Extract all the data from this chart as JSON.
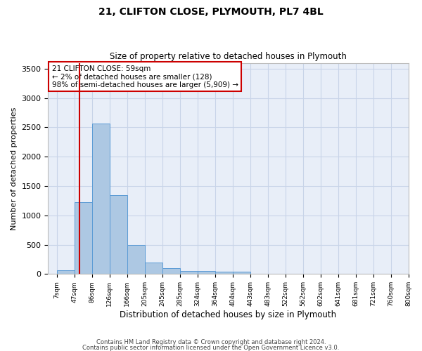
{
  "title1": "21, CLIFTON CLOSE, PLYMOUTH, PL7 4BL",
  "title2": "Size of property relative to detached houses in Plymouth",
  "xlabel": "Distribution of detached houses by size in Plymouth",
  "ylabel": "Number of detached properties",
  "bin_labels": [
    "7sqm",
    "47sqm",
    "86sqm",
    "126sqm",
    "166sqm",
    "205sqm",
    "245sqm",
    "285sqm",
    "324sqm",
    "364sqm",
    "404sqm",
    "443sqm",
    "483sqm",
    "522sqm",
    "562sqm",
    "602sqm",
    "641sqm",
    "681sqm",
    "721sqm",
    "760sqm",
    "800sqm"
  ],
  "bar_heights": [
    60,
    1230,
    2570,
    1340,
    500,
    190,
    100,
    55,
    55,
    35,
    35,
    0,
    0,
    0,
    0,
    0,
    0,
    0,
    0,
    0
  ],
  "bar_color": "#adc8e3",
  "bar_edge_color": "#5b9bd5",
  "property_line_index": 1,
  "vline_color": "#cc0000",
  "annotation_text": "21 CLIFTON CLOSE: 59sqm\n← 2% of detached houses are smaller (128)\n98% of semi-detached houses are larger (5,909) →",
  "annotation_box_color": "#cc0000",
  "ylim": [
    0,
    3600
  ],
  "yticks": [
    0,
    500,
    1000,
    1500,
    2000,
    2500,
    3000,
    3500
  ],
  "grid_color": "#c8d4e8",
  "bg_color": "#e8eef8",
  "footer1": "Contains HM Land Registry data © Crown copyright and database right 2024.",
  "footer2": "Contains public sector information licensed under the Open Government Licence v3.0."
}
